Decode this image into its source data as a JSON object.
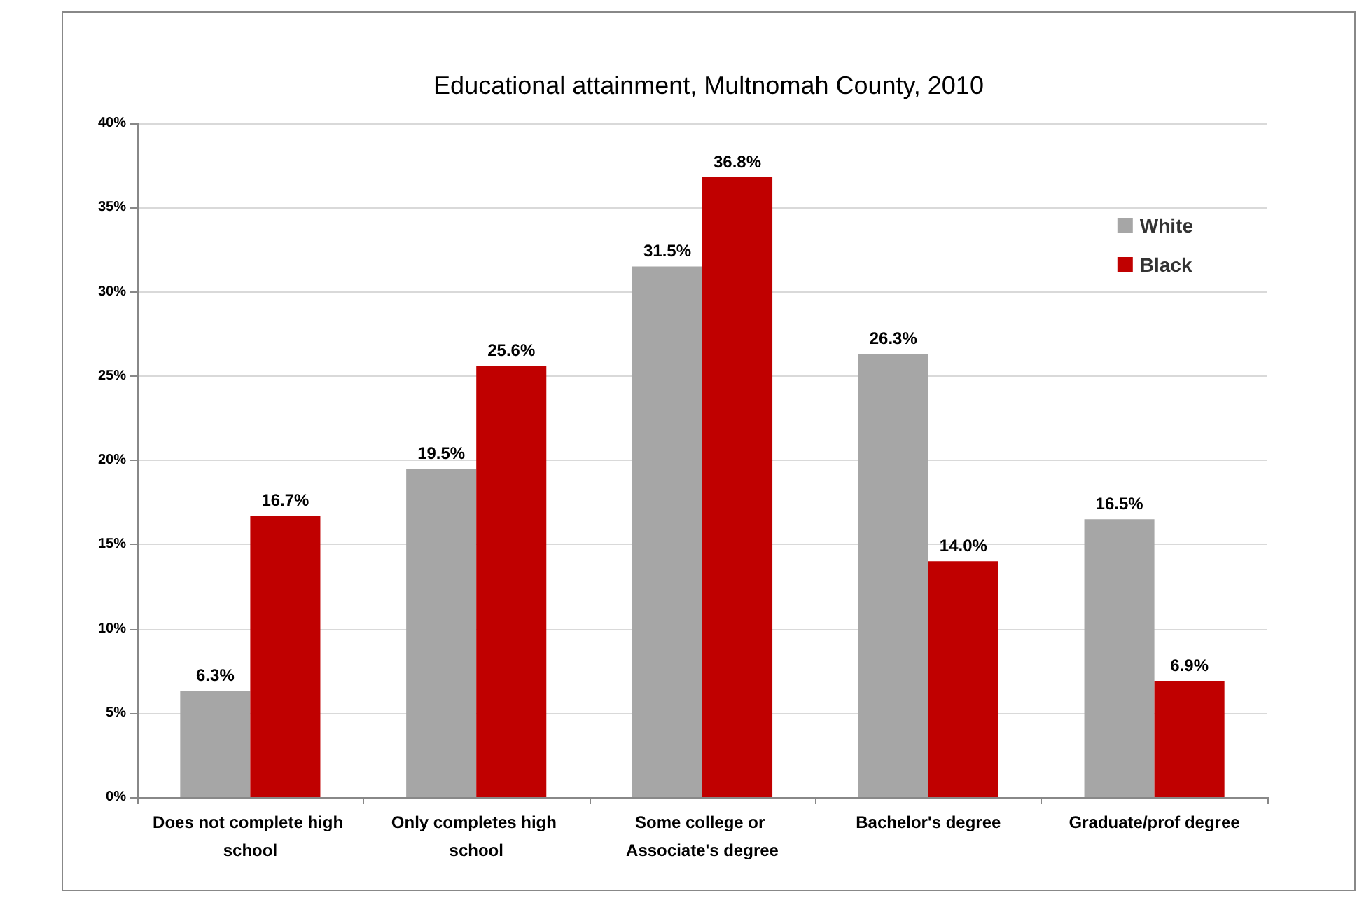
{
  "chart_data": {
    "type": "bar",
    "title": "Educational attainment, Multnomah County, 2010",
    "categories": [
      "Does not complete high school",
      "Only completes high school",
      "Some college or Associate's degree",
      "Bachelor's degree",
      "Graduate/prof degree"
    ],
    "series": [
      {
        "name": "White",
        "color": "#a6a6a6",
        "values": [
          6.3,
          19.5,
          31.5,
          26.3,
          16.5
        ],
        "value_labels": [
          "6.3%",
          "19.5%",
          "31.5%",
          "26.3%",
          "16.5%"
        ]
      },
      {
        "name": "Black",
        "color": "#c00000",
        "values": [
          16.7,
          25.6,
          36.8,
          14.0,
          6.9
        ],
        "value_labels": [
          "16.7%",
          "25.6%",
          "36.8%",
          "14.0%",
          "6.9%"
        ]
      }
    ],
    "ylim": [
      0,
      40
    ],
    "yticks": [
      {
        "value": 0,
        "label": "0%"
      },
      {
        "value": 5,
        "label": "5%"
      },
      {
        "value": 10,
        "label": "10%"
      },
      {
        "value": 15,
        "label": "15%"
      },
      {
        "value": 20,
        "label": "20%"
      },
      {
        "value": 25,
        "label": "25%"
      },
      {
        "value": 30,
        "label": "30%"
      },
      {
        "value": 35,
        "label": "35%"
      },
      {
        "value": 40,
        "label": "40%"
      }
    ],
    "grid": true,
    "legend": "top right"
  }
}
